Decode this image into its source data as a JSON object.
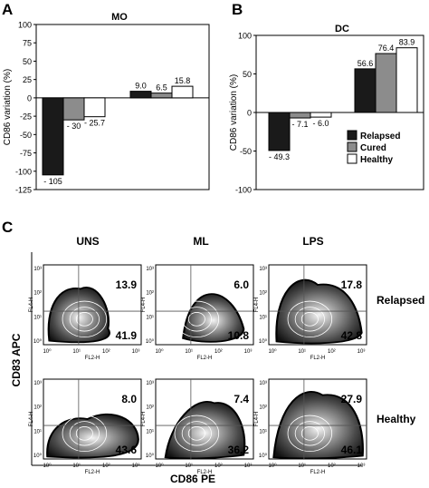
{
  "chart_data": [
    {
      "panel": "A",
      "type": "bar",
      "title": "MO",
      "ylabel": "CD86 variation (%)",
      "ylim": [
        -125,
        100
      ],
      "yticks": [
        -125,
        -100,
        -75,
        -50,
        -25,
        0,
        25,
        50,
        75,
        100
      ],
      "categories": [
        "",
        ""
      ],
      "series": [
        {
          "name": "Relapsed",
          "values": [
            -105,
            9.0
          ],
          "labels": [
            "- 105",
            "9.0"
          ],
          "color": "#1a1a1a"
        },
        {
          "name": "Cured",
          "values": [
            -30,
            6.5
          ],
          "labels": [
            "- 30",
            "6.5"
          ],
          "color": "#8c8c8c"
        },
        {
          "name": "Healthy",
          "values": [
            -25.7,
            15.8
          ],
          "labels": [
            "- 25.7",
            "15.8"
          ],
          "color": "#ffffff"
        }
      ]
    },
    {
      "panel": "B",
      "type": "bar",
      "title": "DC",
      "ylabel": "CD86 variation (%)",
      "ylim": [
        -100,
        100
      ],
      "yticks": [
        -100,
        -50,
        0,
        50,
        100
      ],
      "categories": [
        "",
        ""
      ],
      "legend": "bottom-right",
      "series": [
        {
          "name": "Relapsed",
          "values": [
            -49.3,
            56.6
          ],
          "labels": [
            "- 49.3",
            "56.6"
          ],
          "color": "#1a1a1a"
        },
        {
          "name": "Cured",
          "values": [
            -7.1,
            76.4
          ],
          "labels": [
            "- 7.1",
            "76.4"
          ],
          "color": "#8c8c8c"
        },
        {
          "name": "Healthy",
          "values": [
            -6.0,
            83.9
          ],
          "labels": [
            "- 6.0",
            "83.9"
          ],
          "color": "#ffffff"
        }
      ]
    },
    {
      "panel": "C",
      "type": "scatter",
      "subtype": "flow-cytometry contour plots",
      "xlabel": "CD86 PE",
      "ylabel": "CD83 APC",
      "columns": [
        "UNS",
        "ML",
        "LPS"
      ],
      "rows": [
        "Relapsed",
        "Healthy"
      ],
      "axis_x_label": "FL2-H",
      "axis_y_label": "FL4-H",
      "tick_labels": [
        "10⁰",
        "10¹",
        "10²",
        "10³"
      ],
      "quadrant_values": [
        [
          {
            "upper_right": "13.9",
            "lower_right": "41.9"
          },
          {
            "upper_right": "6.0",
            "lower_right": "10.8"
          },
          {
            "upper_right": "17.8",
            "lower_right": "42.8"
          }
        ],
        [
          {
            "upper_right": "8.0",
            "lower_right": "43.6"
          },
          {
            "upper_right": "7.4",
            "lower_right": "36.2"
          },
          {
            "upper_right": "27.9",
            "lower_right": "46.1"
          }
        ]
      ]
    }
  ],
  "panel_letters": {
    "a": "A",
    "b": "B",
    "c": "C"
  }
}
